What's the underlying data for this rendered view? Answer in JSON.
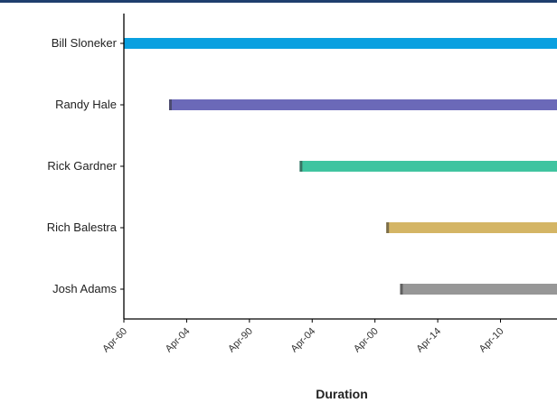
{
  "chart_data": {
    "type": "bar",
    "orientation": "horizontal",
    "title": "",
    "xlabel": "Duration",
    "ylabel": "",
    "categories": [
      "Bill Sloneker",
      "Randy Hale",
      "Rick Gardner",
      "Rich Balestra",
      "Josh Adams"
    ],
    "x_tick_labels": [
      "Apr-60",
      "Apr-04",
      "Apr-90",
      "Apr-04",
      "Apr-00",
      "Apr-14",
      "Apr-10"
    ],
    "bars": [
      {
        "category": "Bill Sloneker",
        "start": 0,
        "end": 12,
        "color": "#0aa0e0"
      },
      {
        "category": "Randy Hale",
        "start": 0.72,
        "end": 12,
        "color": "#6b69b8"
      },
      {
        "category": "Rick Gardner",
        "start": 2.8,
        "end": 12,
        "color": "#3fc4a0"
      },
      {
        "category": "Rich Balestra",
        "start": 4.18,
        "end": 12,
        "color": "#d4b565"
      },
      {
        "category": "Josh Adams",
        "start": 4.4,
        "end": 12,
        "color": "#979797"
      }
    ],
    "xlim": [
      0,
      6.9
    ],
    "grid": false,
    "legend": "none"
  }
}
